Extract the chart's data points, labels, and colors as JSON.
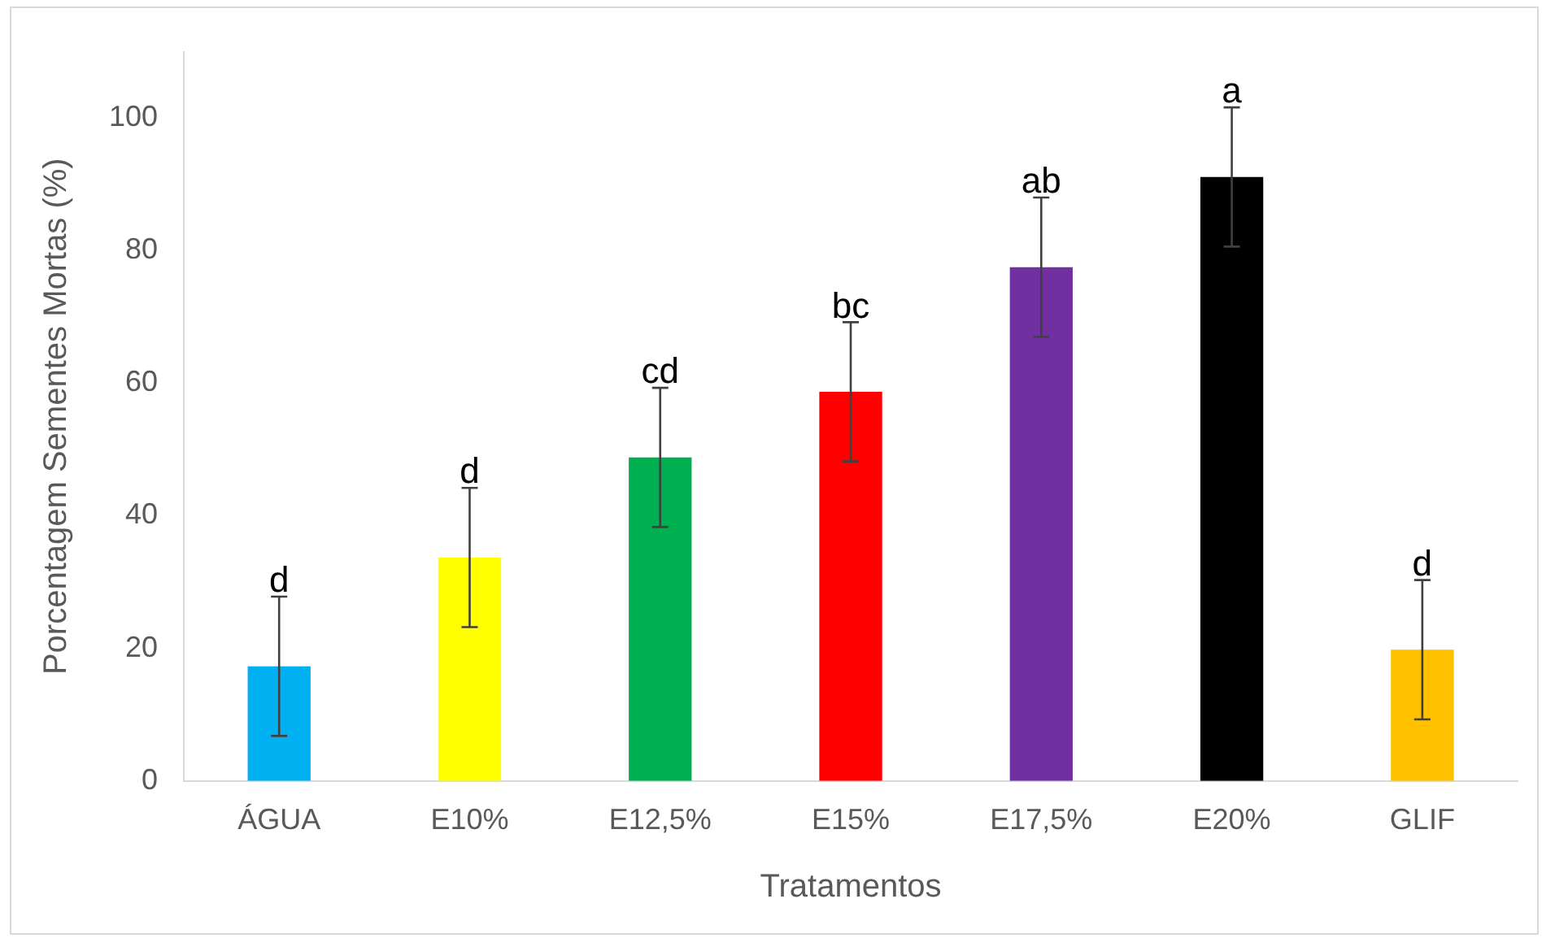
{
  "chart_data": {
    "type": "bar",
    "xlabel": "Tratamentos",
    "ylabel": "Porcentagem Sementes Mortas (%)",
    "categories": [
      "ÁGUA",
      "E10%",
      "E12,5%",
      "E15%",
      "E17,5%",
      "E20%",
      "GLIF"
    ],
    "values": [
      17.3,
      33.7,
      48.8,
      58.7,
      77.5,
      91.1,
      19.8
    ],
    "colors": [
      "#00b0f0",
      "#ffff00",
      "#00b050",
      "#ff0000",
      "#7030a0",
      "#000000",
      "#ffc000"
    ],
    "errors": [
      10.5,
      10.5,
      10.5,
      10.5,
      10.5,
      10.5,
      10.5
    ],
    "ylim": [
      0,
      110
    ],
    "yticks": [
      0,
      20,
      40,
      60,
      80,
      100
    ],
    "grid": false,
    "legend": false,
    "annotations": [
      {
        "text": "d",
        "x": "ÁGUA",
        "y": 27.8
      },
      {
        "text": "d",
        "x": "E10%",
        "y": 44.2
      },
      {
        "text": "cd",
        "x": "E12,5%",
        "y": 59.3
      },
      {
        "text": "bc",
        "x": "E15%",
        "y": 69.2
      },
      {
        "text": "ab",
        "x": "E17,5%",
        "y": 88
      },
      {
        "text": "a",
        "x": "E20%",
        "y": 101.6
      },
      {
        "text": "d",
        "x": "GLIF",
        "y": 30.3
      }
    ]
  }
}
